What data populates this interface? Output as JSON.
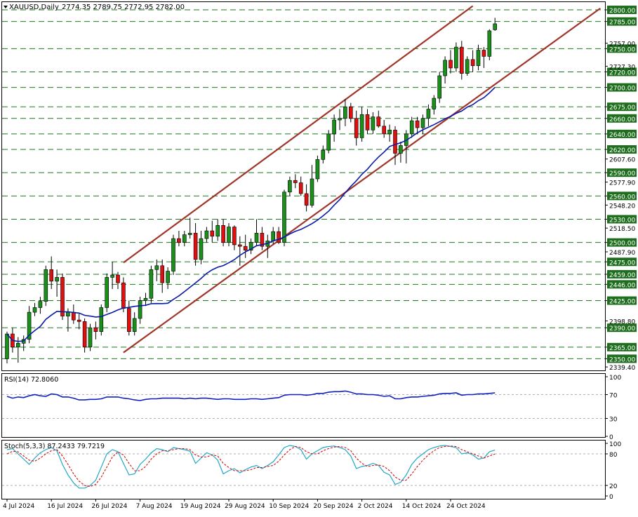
{
  "header": {
    "symbol": "XAUUSD,Daily",
    "ohlc": "2774.35 2789.75 2772.95 2782.00"
  },
  "colors": {
    "up": "#1a8f1a",
    "down": "#e01010",
    "sma": "#0a1aa8",
    "channel": "#a0352a",
    "hline": "#1e7a1e",
    "level_label_bg": "#1e6e1e",
    "rsi": "#1020c0",
    "stoch_main": "#20a8c8",
    "stoch_signal": "#d01010"
  },
  "chart_data": [
    {
      "type": "candlestick",
      "title": "XAUUSD,Daily",
      "ylim": [
        2335,
        2810
      ],
      "yticks": [
        2339.4,
        2350.0,
        2365.0,
        2390.0,
        2398.8,
        2425.0,
        2446.0,
        2459.0,
        2475.0,
        2487.9,
        2500.0,
        2518.5,
        2530.0,
        2548.2,
        2560.0,
        2577.9,
        2590.0,
        2607.6,
        2620.0,
        2640.0,
        2660.0,
        2675.0,
        2700.0,
        2720.0,
        2727.3,
        2750.0,
        2757.0,
        2785.0,
        2800.0
      ],
      "levels": [
        2350.0,
        2365.0,
        2390.0,
        2425.0,
        2446.0,
        2459.0,
        2475.0,
        2500.0,
        2530.0,
        2560.0,
        2590.0,
        2620.0,
        2640.0,
        2660.0,
        2675.0,
        2700.0,
        2720.0,
        2750.0,
        2785.0,
        2800.0
      ],
      "xticks": [
        "4 Jul 2024",
        "16 Jul 2024",
        "26 Jul 2024",
        "7 Aug 2024",
        "19 Aug 2024",
        "29 Aug 2024",
        "10 Sep 2024",
        "20 Sep 2024",
        "2 Oct 2024",
        "14 Oct 2024",
        "24 Oct 2024"
      ],
      "xtick_bar_index": [
        0,
        8,
        16,
        24,
        32,
        40,
        48,
        56,
        64,
        72,
        80
      ],
      "channel": {
        "upper": [
          [
            21,
            2474
          ],
          [
            84,
            2805
          ]
        ],
        "lower": [
          [
            21,
            2358
          ],
          [
            107,
            2802
          ]
        ]
      },
      "sma_period": 20,
      "ohlc": [
        [
          2350,
          2385,
          2344,
          2382
        ],
        [
          2382,
          2390,
          2358,
          2365
        ],
        [
          2365,
          2378,
          2345,
          2370
        ],
        [
          2370,
          2380,
          2360,
          2375
        ],
        [
          2375,
          2418,
          2370,
          2410
        ],
        [
          2410,
          2422,
          2405,
          2416
        ],
        [
          2416,
          2430,
          2408,
          2424
        ],
        [
          2424,
          2470,
          2418,
          2465
        ],
        [
          2465,
          2482,
          2440,
          2450
        ],
        [
          2450,
          2465,
          2430,
          2455
        ],
        [
          2455,
          2460,
          2400,
          2405
        ],
        [
          2405,
          2415,
          2385,
          2410
        ],
        [
          2410,
          2420,
          2395,
          2400
        ],
        [
          2400,
          2408,
          2388,
          2398
        ],
        [
          2398,
          2402,
          2358,
          2365
        ],
        [
          2365,
          2395,
          2360,
          2390
        ],
        [
          2390,
          2398,
          2375,
          2385
        ],
        [
          2385,
          2420,
          2380,
          2416
        ],
        [
          2416,
          2460,
          2410,
          2455
        ],
        [
          2455,
          2475,
          2440,
          2458
        ],
        [
          2458,
          2462,
          2440,
          2448
        ],
        [
          2448,
          2455,
          2410,
          2415
        ],
        [
          2415,
          2425,
          2380,
          2385
        ],
        [
          2385,
          2410,
          2380,
          2402
        ],
        [
          2402,
          2430,
          2395,
          2425
        ],
        [
          2425,
          2435,
          2418,
          2428
        ],
        [
          2428,
          2470,
          2422,
          2465
        ],
        [
          2465,
          2478,
          2450,
          2470
        ],
        [
          2470,
          2478,
          2435,
          2448
        ],
        [
          2448,
          2468,
          2440,
          2463
        ],
        [
          2463,
          2510,
          2458,
          2505
        ],
        [
          2505,
          2515,
          2495,
          2500
        ],
        [
          2500,
          2515,
          2495,
          2510
        ],
        [
          2510,
          2532,
          2505,
          2512
        ],
        [
          2512,
          2525,
          2470,
          2478
        ],
        [
          2478,
          2515,
          2472,
          2505
        ],
        [
          2505,
          2520,
          2500,
          2515
        ],
        [
          2515,
          2528,
          2500,
          2508
        ],
        [
          2508,
          2530,
          2502,
          2522
        ],
        [
          2522,
          2530,
          2495,
          2500
        ],
        [
          2500,
          2525,
          2495,
          2520
        ],
        [
          2520,
          2522,
          2490,
          2497
        ],
        [
          2497,
          2508,
          2470,
          2495
        ],
        [
          2495,
          2510,
          2480,
          2490
        ],
        [
          2490,
          2505,
          2485,
          2500
        ],
        [
          2500,
          2530,
          2495,
          2512
        ],
        [
          2512,
          2520,
          2490,
          2495
        ],
        [
          2495,
          2510,
          2480,
          2502
        ],
        [
          2502,
          2520,
          2498,
          2514
        ],
        [
          2514,
          2520,
          2498,
          2500
        ],
        [
          2500,
          2568,
          2495,
          2565
        ],
        [
          2565,
          2585,
          2560,
          2580
        ],
        [
          2580,
          2588,
          2570,
          2577
        ],
        [
          2577,
          2585,
          2560,
          2563
        ],
        [
          2563,
          2575,
          2540,
          2548
        ],
        [
          2548,
          2600,
          2545,
          2582
        ],
        [
          2582,
          2612,
          2578,
          2607
        ],
        [
          2607,
          2625,
          2602,
          2619
        ],
        [
          2619,
          2645,
          2615,
          2640
        ],
        [
          2640,
          2665,
          2630,
          2658
        ],
        [
          2658,
          2672,
          2645,
          2660
        ],
        [
          2660,
          2685,
          2650,
          2675
        ],
        [
          2675,
          2680,
          2655,
          2660
        ],
        [
          2660,
          2670,
          2625,
          2635
        ],
        [
          2635,
          2675,
          2630,
          2665
        ],
        [
          2665,
          2672,
          2640,
          2645
        ],
        [
          2645,
          2668,
          2640,
          2662
        ],
        [
          2662,
          2670,
          2648,
          2650
        ],
        [
          2650,
          2658,
          2635,
          2640
        ],
        [
          2640,
          2652,
          2630,
          2645
        ],
        [
          2645,
          2650,
          2600,
          2615
        ],
        [
          2615,
          2630,
          2603,
          2625
        ],
        [
          2625,
          2645,
          2602,
          2640
        ],
        [
          2640,
          2662,
          2635,
          2657
        ],
        [
          2657,
          2662,
          2640,
          2648
        ],
        [
          2648,
          2665,
          2640,
          2660
        ],
        [
          2660,
          2678,
          2650,
          2672
        ],
        [
          2672,
          2690,
          2665,
          2686
        ],
        [
          2686,
          2720,
          2680,
          2715
        ],
        [
          2715,
          2740,
          2705,
          2735
        ],
        [
          2735,
          2748,
          2718,
          2725
        ],
        [
          2725,
          2758,
          2720,
          2752
        ],
        [
          2752,
          2760,
          2710,
          2718
        ],
        [
          2718,
          2740,
          2715,
          2736
        ],
        [
          2736,
          2748,
          2720,
          2728
        ],
        [
          2728,
          2755,
          2722,
          2748
        ],
        [
          2748,
          2752,
          2725,
          2740
        ],
        [
          2740,
          2775,
          2735,
          2773
        ],
        [
          2774.35,
          2789.75,
          2772.95,
          2782.0
        ]
      ]
    },
    {
      "type": "line",
      "title": "RSI(14) 72.8060",
      "ylim": [
        0,
        100
      ],
      "yticks": [
        0,
        30,
        70,
        100
      ],
      "levels": [
        30,
        70
      ],
      "values": [
        67,
        64,
        66,
        65,
        68,
        70,
        68,
        67,
        71,
        70,
        66,
        66,
        64,
        61,
        61,
        62,
        62,
        63,
        66,
        66,
        66,
        64,
        63,
        61,
        60,
        62,
        63,
        63,
        64,
        64,
        64,
        64,
        63,
        64,
        63,
        64,
        64,
        63,
        62,
        63,
        63,
        62,
        62,
        62,
        63,
        63,
        62,
        63,
        64,
        65,
        69,
        70,
        70,
        70,
        69,
        70,
        72,
        72,
        74,
        75,
        75,
        76,
        74,
        71,
        71,
        70,
        70,
        69,
        67,
        68,
        63,
        63,
        65,
        66,
        66,
        67,
        68,
        69,
        71,
        72,
        72,
        73,
        69,
        70,
        70,
        71,
        71,
        72,
        72.8
      ]
    },
    {
      "type": "line",
      "title": "Stoch(5,3,3) 87.2433 79.7219",
      "ylim": [
        0,
        100
      ],
      "yticks": [
        0,
        20,
        80,
        100
      ],
      "levels": [
        20,
        80
      ],
      "series": [
        {
          "name": "main",
          "values": [
            88,
            90,
            80,
            70,
            60,
            72,
            82,
            88,
            92,
            86,
            60,
            40,
            25,
            15,
            15,
            20,
            30,
            55,
            80,
            88,
            84,
            62,
            40,
            42,
            60,
            70,
            82,
            90,
            88,
            84,
            92,
            90,
            88,
            85,
            62,
            72,
            82,
            78,
            68,
            42,
            48,
            52,
            44,
            50,
            55,
            58,
            52,
            58,
            65,
            78,
            92,
            96,
            94,
            88,
            70,
            80,
            86,
            92,
            94,
            95,
            92,
            88,
            76,
            52,
            56,
            58,
            62,
            58,
            45,
            40,
            22,
            26,
            40,
            60,
            72,
            80,
            88,
            92,
            95,
            96,
            94,
            92,
            80,
            82,
            78,
            70,
            72,
            84,
            87.24
          ]
        },
        {
          "name": "signal",
          "values": [
            80,
            85,
            84,
            76,
            68,
            66,
            72,
            80,
            86,
            88,
            76,
            60,
            42,
            28,
            20,
            18,
            22,
            36,
            55,
            74,
            84,
            78,
            62,
            48,
            48,
            56,
            70,
            80,
            86,
            86,
            88,
            90,
            90,
            88,
            78,
            74,
            74,
            78,
            76,
            62,
            54,
            48,
            48,
            48,
            50,
            54,
            54,
            56,
            58,
            66,
            78,
            88,
            94,
            92,
            84,
            80,
            80,
            86,
            90,
            93,
            94,
            92,
            86,
            72,
            62,
            56,
            58,
            59,
            56,
            48,
            36,
            30,
            30,
            42,
            56,
            68,
            78,
            86,
            92,
            94,
            95,
            94,
            88,
            84,
            80,
            76,
            72,
            76,
            79.72
          ]
        }
      ]
    }
  ]
}
